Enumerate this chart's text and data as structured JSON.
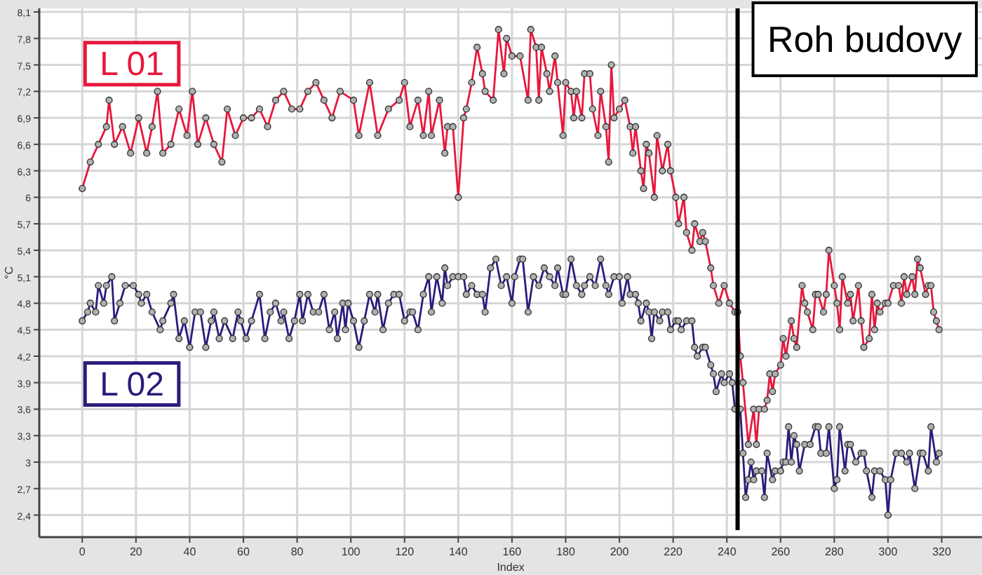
{
  "chart_data": {
    "type": "line",
    "xlabel": "Index",
    "ylabel": "°C",
    "xlim": [
      -16,
      335
    ],
    "ylim": [
      2.15,
      8.14
    ],
    "xticks": [
      0,
      20,
      40,
      60,
      80,
      100,
      120,
      140,
      160,
      180,
      200,
      220,
      240,
      260,
      280,
      300,
      320
    ],
    "yticks": [
      {
        "value": 2.4,
        "label": "2,4"
      },
      {
        "value": 2.7,
        "label": "2,7"
      },
      3,
      {
        "value": 3.3,
        "label": "3,3"
      },
      {
        "value": 3.6,
        "label": "3,6"
      },
      {
        "value": 3.9,
        "label": "3,9"
      },
      {
        "value": 4.2,
        "label": "4,2"
      },
      {
        "value": 4.5,
        "label": "4,5"
      },
      {
        "value": 4.8,
        "label": "4,8"
      },
      {
        "value": 5.1,
        "label": "5,1"
      },
      {
        "value": 5.4,
        "label": "5,4"
      },
      {
        "value": 5.7,
        "label": "5,7"
      },
      6,
      {
        "value": 6.3,
        "label": "6,3"
      },
      {
        "value": 6.6,
        "label": "6,6"
      },
      {
        "value": 6.9,
        "label": "6,9"
      },
      {
        "value": 7.2,
        "label": "7,2"
      },
      {
        "value": 7.5,
        "label": "7,5"
      },
      {
        "value": 7.8,
        "label": "7,8"
      },
      {
        "value": 8.1,
        "label": "8,1"
      }
    ],
    "grid": true,
    "marker": "circle",
    "legend": false,
    "ref_lines": [
      {
        "axis": "x",
        "value": 244,
        "label": "Roh budovy",
        "color": "#000000"
      }
    ],
    "series": [
      {
        "name": "L 01",
        "color": "#e8173c",
        "x": [
          0,
          3,
          6,
          9,
          10,
          12,
          15,
          18,
          21,
          24,
          26,
          28,
          30,
          33,
          36,
          39,
          41,
          43,
          46,
          49,
          52,
          54,
          57,
          60,
          63,
          66,
          69,
          72,
          75,
          78,
          81,
          84,
          87,
          90,
          93,
          96,
          101,
          103,
          107,
          110,
          114,
          118,
          120,
          122,
          125,
          127,
          129,
          130,
          133,
          135,
          136,
          138,
          140,
          142,
          143,
          145,
          147,
          149,
          150,
          153,
          155,
          157,
          158,
          160,
          163,
          166,
          167,
          169,
          170,
          171,
          173,
          174,
          176,
          177,
          179,
          180,
          182,
          183,
          184,
          186,
          187,
          189,
          190,
          192,
          193,
          195,
          196,
          197,
          198,
          200,
          202,
          204,
          205,
          206,
          208,
          209,
          210,
          211,
          213,
          214,
          216,
          218,
          219,
          221,
          222,
          224,
          225,
          227,
          228,
          230,
          231,
          232,
          234,
          235,
          237,
          239,
          241,
          243,
          244,
          245,
          246,
          248,
          250,
          251,
          252,
          254,
          255,
          256,
          257,
          258,
          260,
          261,
          262,
          264,
          265,
          266,
          268,
          269,
          270,
          272,
          273,
          274,
          276,
          277,
          278,
          280,
          281,
          282,
          283,
          285,
          286,
          287,
          289,
          290,
          291,
          293,
          294,
          295,
          296,
          297,
          299,
          300,
          302,
          304,
          305,
          306,
          307,
          309,
          310,
          311,
          312,
          314,
          315,
          316,
          317,
          318,
          319
        ],
        "values": [
          6.1,
          6.4,
          6.6,
          6.8,
          7.1,
          6.6,
          6.8,
          6.5,
          6.9,
          6.5,
          6.8,
          7.2,
          6.5,
          6.6,
          7.0,
          6.7,
          7.2,
          6.6,
          6.9,
          6.6,
          6.4,
          7.0,
          6.7,
          6.9,
          6.9,
          7.0,
          6.8,
          7.1,
          7.2,
          7.0,
          7.0,
          7.2,
          7.3,
          7.1,
          6.9,
          7.2,
          7.1,
          6.7,
          7.3,
          6.7,
          7.0,
          7.1,
          7.3,
          6.8,
          7.1,
          6.7,
          7.2,
          6.7,
          7.1,
          6.5,
          6.8,
          6.8,
          6.0,
          6.9,
          7.0,
          7.3,
          7.7,
          7.4,
          7.2,
          7.1,
          7.9,
          7.4,
          7.8,
          7.6,
          7.6,
          7.1,
          7.9,
          7.7,
          7.1,
          7.7,
          7.4,
          7.2,
          7.6,
          7.3,
          6.7,
          7.3,
          7.2,
          6.9,
          7.2,
          6.9,
          7.4,
          7.4,
          7.0,
          6.7,
          7.2,
          6.8,
          6.4,
          7.5,
          6.9,
          7.0,
          7.1,
          6.8,
          6.5,
          6.8,
          6.3,
          6.1,
          6.6,
          6.5,
          6.0,
          6.7,
          6.3,
          6.6,
          6.3,
          6.0,
          5.7,
          6.0,
          5.6,
          5.4,
          5.7,
          5.5,
          5.6,
          5.5,
          5.2,
          5.0,
          4.8,
          5.0,
          4.8,
          4.7,
          4.7,
          4.2,
          3.9,
          3.2,
          3.6,
          3.2,
          3.6,
          3.6,
          3.7,
          4.0,
          3.8,
          4.0,
          4.1,
          4.4,
          4.2,
          4.6,
          4.4,
          4.3,
          5.0,
          4.8,
          4.7,
          4.5,
          4.9,
          4.9,
          4.7,
          4.9,
          5.4,
          5.0,
          4.8,
          4.5,
          5.1,
          4.8,
          4.9,
          4.6,
          5.0,
          4.6,
          4.3,
          4.4,
          4.9,
          4.5,
          4.8,
          4.7,
          4.8,
          4.8,
          5.0,
          5.0,
          4.8,
          5.1,
          4.9,
          5.1,
          4.9,
          5.3,
          5.2,
          4.9,
          5.0,
          5.0,
          4.7,
          4.6,
          4.5
        ]
      },
      {
        "name": "L 02",
        "color": "#2b1b7c",
        "x": [
          0,
          2,
          3,
          5,
          6,
          8,
          9,
          11,
          12,
          14,
          16,
          19,
          21,
          22,
          24,
          26,
          29,
          30,
          33,
          34,
          36,
          38,
          40,
          42,
          44,
          46,
          48,
          49,
          51,
          53,
          56,
          58,
          59,
          61,
          63,
          66,
          68,
          70,
          72,
          74,
          75,
          77,
          79,
          81,
          82,
          84,
          86,
          88,
          90,
          92,
          94,
          95,
          97,
          98,
          99,
          101,
          103,
          105,
          107,
          109,
          110,
          112,
          114,
          116,
          118,
          120,
          122,
          123,
          125,
          127,
          129,
          130,
          132,
          134,
          135,
          136,
          138,
          140,
          142,
          143,
          145,
          147,
          149,
          150,
          152,
          154,
          156,
          158,
          160,
          161,
          163,
          164,
          166,
          168,
          170,
          172,
          174,
          176,
          177,
          179,
          180,
          182,
          184,
          186,
          187,
          189,
          191,
          193,
          195,
          196,
          198,
          200,
          201,
          203,
          204,
          206,
          207,
          208,
          210,
          211,
          212,
          213,
          215,
          216,
          218,
          219,
          221,
          222,
          223,
          225,
          227,
          228,
          229,
          231,
          232,
          234,
          235,
          236,
          238,
          239,
          241,
          242,
          243,
          245,
          246,
          247,
          248,
          249,
          250,
          251,
          253,
          254,
          255,
          257,
          258,
          260,
          261,
          262,
          263,
          264,
          265,
          266,
          267,
          269,
          271,
          273,
          274,
          275,
          277,
          278,
          280,
          281,
          282,
          284,
          285,
          286,
          288,
          290,
          291,
          292,
          294,
          295,
          297,
          299,
          300,
          301,
          303,
          305,
          307,
          308,
          310,
          312,
          313,
          315,
          316,
          318,
          319
        ],
        "values": [
          4.6,
          4.7,
          4.8,
          4.7,
          5.0,
          4.8,
          5.0,
          5.1,
          4.6,
          4.8,
          5.0,
          5.0,
          4.9,
          4.8,
          4.9,
          4.7,
          4.5,
          4.6,
          4.8,
          4.9,
          4.4,
          4.6,
          4.3,
          4.7,
          4.7,
          4.3,
          4.6,
          4.7,
          4.4,
          4.6,
          4.4,
          4.7,
          4.6,
          4.4,
          4.6,
          4.9,
          4.4,
          4.7,
          4.8,
          4.6,
          4.7,
          4.4,
          4.6,
          4.9,
          4.6,
          4.9,
          4.7,
          4.7,
          4.9,
          4.5,
          4.7,
          4.4,
          4.8,
          4.5,
          4.8,
          4.6,
          4.3,
          4.6,
          4.9,
          4.7,
          4.9,
          4.5,
          4.8,
          4.9,
          4.9,
          4.6,
          4.7,
          4.7,
          4.5,
          4.9,
          5.1,
          4.7,
          5.1,
          4.8,
          5.2,
          5.0,
          5.1,
          5.1,
          5.1,
          4.9,
          5.0,
          4.9,
          4.9,
          4.7,
          5.2,
          5.3,
          5.0,
          5.1,
          4.8,
          5.1,
          5.3,
          5.3,
          4.7,
          5.1,
          5.0,
          5.2,
          5.1,
          5.0,
          5.2,
          4.9,
          4.9,
          5.3,
          5.0,
          4.9,
          5.0,
          5.1,
          5.0,
          5.3,
          5.0,
          4.9,
          5.1,
          5.1,
          4.8,
          5.1,
          4.9,
          4.9,
          4.8,
          4.6,
          4.8,
          4.7,
          4.4,
          4.7,
          4.6,
          4.7,
          4.7,
          4.5,
          4.6,
          4.6,
          4.5,
          4.6,
          4.6,
          4.3,
          4.2,
          4.3,
          4.3,
          4.1,
          4.0,
          3.8,
          4.0,
          3.9,
          4.0,
          3.9,
          3.6,
          3.6,
          3.1,
          2.6,
          2.8,
          3.0,
          2.8,
          2.9,
          2.9,
          2.6,
          3.1,
          2.8,
          2.9,
          2.9,
          3.0,
          3.0,
          3.4,
          3.0,
          3.3,
          3.2,
          2.9,
          3.2,
          3.2,
          3.4,
          3.4,
          3.1,
          3.1,
          3.4,
          2.7,
          2.8,
          3.4,
          2.9,
          3.2,
          3.2,
          3.0,
          3.1,
          3.1,
          2.9,
          2.6,
          2.9,
          2.9,
          2.8,
          2.4,
          2.8,
          3.1,
          3.1,
          3.0,
          3.1,
          2.7,
          3.1,
          3.1,
          2.9,
          3.4,
          3.0,
          3.1
        ]
      }
    ]
  }
}
